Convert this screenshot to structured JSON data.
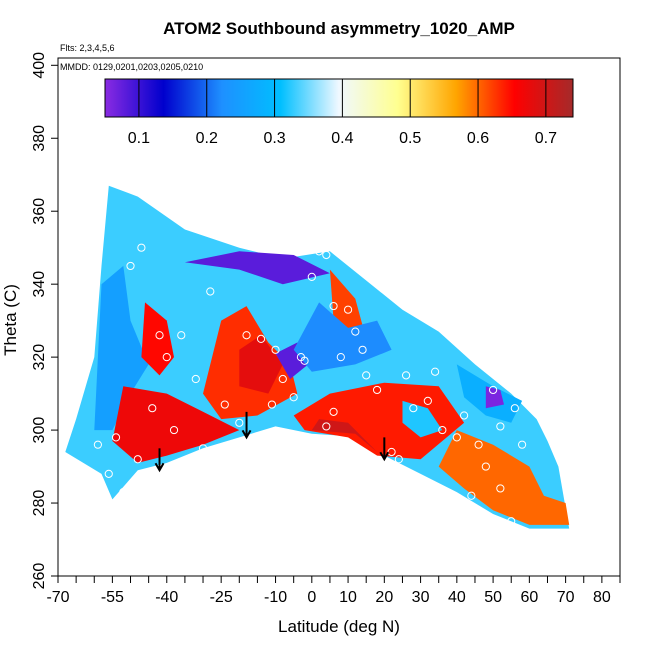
{
  "chart_data": {
    "type": "heatmap",
    "title": "ATOM2 Southbound asymmetry_1020_AMP",
    "annotations": [
      "Flts: 2,3,4,5,6",
      "MMDD: 0129,0201,0203,0205,0210"
    ],
    "xlabel": "Latitude (deg N)",
    "ylabel": "Theta (C)",
    "xlim": [
      -70,
      85
    ],
    "ylim": [
      260,
      402
    ],
    "x_ticks": [
      -70,
      -55,
      -40,
      -25,
      -10,
      0,
      10,
      20,
      30,
      40,
      50,
      60,
      70,
      80
    ],
    "x_tick_labels": [
      "-70",
      "-55",
      "-40",
      "-25",
      "-10",
      "0",
      "10",
      "20",
      "30",
      "40",
      "50",
      "60",
      "70",
      "80"
    ],
    "x_minor_ticks": [
      -65,
      -60,
      -50,
      -45,
      -35,
      -30,
      -20,
      -15,
      -5,
      5,
      15,
      25,
      35,
      45,
      55,
      65,
      75,
      85
    ],
    "y_ticks": [
      260,
      280,
      300,
      320,
      340,
      360,
      380,
      400
    ],
    "y_tick_labels": [
      "260",
      "280",
      "300",
      "320",
      "340",
      "360",
      "380",
      "400"
    ],
    "colorbar": {
      "range": [
        0.05,
        0.74
      ],
      "ticks": [
        0.1,
        0.2,
        0.3,
        0.4,
        0.5,
        0.6,
        0.7
      ],
      "tick_labels": [
        "0.1",
        "0.2",
        "0.3",
        "0.4",
        "0.5",
        "0.6",
        "0.7"
      ],
      "colors": [
        "#8a2be2",
        "#0000cd",
        "#1e90ff",
        "#00bfff",
        "#f0f8ff",
        "#ffff90",
        "#ffa500",
        "#ff0000",
        "#a52a2a"
      ]
    },
    "domain_boundary": [
      [
        -56,
        367
      ],
      [
        -48,
        364
      ],
      [
        -35,
        355
      ],
      [
        -20,
        350
      ],
      [
        -8,
        347
      ],
      [
        5,
        349
      ],
      [
        15,
        341
      ],
      [
        25,
        333
      ],
      [
        35,
        327
      ],
      [
        45,
        318
      ],
      [
        55,
        310
      ],
      [
        62,
        303
      ],
      [
        65,
        297
      ],
      [
        68,
        290
      ],
      [
        71,
        273
      ],
      [
        60,
        273
      ],
      [
        50,
        277
      ],
      [
        40,
        283
      ],
      [
        30,
        288
      ],
      [
        20,
        293
      ],
      [
        15,
        298
      ],
      [
        0,
        299
      ],
      [
        -10,
        301
      ],
      [
        -20,
        298
      ],
      [
        -30,
        295
      ],
      [
        -40,
        291
      ],
      [
        -48,
        289
      ],
      [
        -55,
        281
      ],
      [
        -58,
        288
      ],
      [
        -68,
        294
      ],
      [
        -65,
        303
      ],
      [
        -60,
        320
      ],
      [
        -58,
        345
      ]
    ],
    "field_regions": [
      {
        "value": 0.25,
        "polygon": [
          [
            -60,
            300
          ],
          [
            -58,
            340
          ],
          [
            -52,
            345
          ],
          [
            -50,
            330
          ],
          [
            -45,
            318
          ],
          [
            -50,
            310
          ],
          [
            -55,
            300
          ]
        ]
      },
      {
        "value": 0.65,
        "polygon": [
          [
            -46,
            335
          ],
          [
            -40,
            330
          ],
          [
            -38,
            320
          ],
          [
            -42,
            315
          ],
          [
            -47,
            320
          ]
        ]
      },
      {
        "value": 0.63,
        "polygon": [
          [
            -30,
            310
          ],
          [
            -25,
            330
          ],
          [
            -18,
            334
          ],
          [
            -12,
            324
          ],
          [
            -6,
            318
          ],
          [
            -4,
            310
          ],
          [
            -15,
            304
          ],
          [
            -25,
            303
          ]
        ]
      },
      {
        "value": 0.68,
        "polygon": [
          [
            -20,
            322
          ],
          [
            -14,
            326
          ],
          [
            -8,
            318
          ],
          [
            -12,
            310
          ],
          [
            -20,
            312
          ]
        ]
      },
      {
        "value": 0.08,
        "polygon": [
          [
            -35,
            346
          ],
          [
            -20,
            344
          ],
          [
            -8,
            340
          ],
          [
            5,
            343
          ],
          [
            -5,
            348
          ],
          [
            -20,
            349
          ]
        ]
      },
      {
        "value": 0.08,
        "polygon": [
          [
            -10,
            321
          ],
          [
            -4,
            324
          ],
          [
            -1,
            318
          ],
          [
            -6,
            314
          ]
        ]
      },
      {
        "value": 0.62,
        "polygon": [
          [
            5,
            344
          ],
          [
            12,
            336
          ],
          [
            15,
            325
          ],
          [
            10,
            320
          ],
          [
            6,
            330
          ]
        ]
      },
      {
        "value": 0.22,
        "polygon": [
          [
            -5,
            322
          ],
          [
            2,
            335
          ],
          [
            10,
            328
          ],
          [
            18,
            330
          ],
          [
            22,
            322
          ],
          [
            12,
            318
          ],
          [
            0,
            316
          ]
        ]
      },
      {
        "value": 0.67,
        "polygon": [
          [
            -52,
            312
          ],
          [
            -40,
            310
          ],
          [
            -30,
            305
          ],
          [
            -20,
            300
          ],
          [
            -30,
            296
          ],
          [
            -40,
            293
          ],
          [
            -48,
            291
          ],
          [
            -55,
            297
          ]
        ]
      },
      {
        "value": 0.64,
        "polygon": [
          [
            -5,
            304
          ],
          [
            5,
            310
          ],
          [
            20,
            313
          ],
          [
            35,
            312
          ],
          [
            42,
            302
          ],
          [
            30,
            292
          ],
          [
            18,
            293
          ],
          [
            10,
            298
          ],
          [
            -2,
            300
          ]
        ]
      },
      {
        "value": 0.7,
        "polygon": [
          [
            0,
            300
          ],
          [
            12,
            299
          ],
          [
            18,
            294
          ],
          [
            10,
            302
          ],
          [
            2,
            303
          ]
        ]
      },
      {
        "value": 0.28,
        "polygon": [
          [
            40,
            318
          ],
          [
            50,
            312
          ],
          [
            58,
            308
          ],
          [
            55,
            302
          ],
          [
            48,
            304
          ],
          [
            42,
            309
          ]
        ]
      },
      {
        "value": 0.06,
        "polygon": [
          [
            48,
            312
          ],
          [
            52,
            311
          ],
          [
            53,
            307
          ],
          [
            48,
            306
          ]
        ]
      },
      {
        "value": 0.32,
        "polygon": [
          [
            25,
            308
          ],
          [
            32,
            306
          ],
          [
            36,
            300
          ],
          [
            30,
            298
          ],
          [
            25,
            302
          ]
        ]
      },
      {
        "value": 0.6,
        "polygon": [
          [
            40,
            300
          ],
          [
            50,
            296
          ],
          [
            60,
            290
          ],
          [
            64,
            282
          ],
          [
            70,
            280
          ],
          [
            71,
            274
          ],
          [
            60,
            274
          ],
          [
            50,
            278
          ],
          [
            42,
            284
          ],
          [
            35,
            290
          ]
        ]
      }
    ],
    "observation_markers": [
      [
        -54,
        298
      ],
      [
        -50,
        345
      ],
      [
        -47,
        350
      ],
      [
        -42,
        326
      ],
      [
        -40,
        320
      ],
      [
        -36,
        326
      ],
      [
        -32,
        314
      ],
      [
        -30,
        295
      ],
      [
        -28,
        338
      ],
      [
        -18,
        326
      ],
      [
        -14,
        325
      ],
      [
        -10,
        322
      ],
      [
        -8,
        314
      ],
      [
        -5,
        309
      ],
      [
        -2,
        319
      ],
      [
        0,
        342
      ],
      [
        2,
        349
      ],
      [
        4,
        348
      ],
      [
        6,
        334
      ],
      [
        10,
        333
      ],
      [
        12,
        327
      ],
      [
        14,
        322
      ],
      [
        18,
        311
      ],
      [
        22,
        294
      ],
      [
        24,
        292
      ],
      [
        28,
        306
      ],
      [
        32,
        308
      ],
      [
        36,
        300
      ],
      [
        40,
        298
      ],
      [
        44,
        282
      ],
      [
        48,
        290
      ],
      [
        50,
        311
      ],
      [
        52,
        284
      ],
      [
        55,
        275
      ],
      [
        58,
        296
      ],
      [
        60,
        313
      ],
      [
        -44,
        306
      ],
      [
        -38,
        300
      ],
      [
        -24,
        307
      ],
      [
        -16,
        297
      ],
      [
        4,
        301
      ],
      [
        6,
        305
      ],
      [
        -52,
        283
      ],
      [
        -56,
        288
      ],
      [
        -59,
        296
      ],
      [
        -48,
        292
      ],
      [
        -20,
        302
      ],
      [
        -11,
        307
      ],
      [
        -3,
        320
      ],
      [
        8,
        320
      ],
      [
        15,
        315
      ],
      [
        26,
        315
      ],
      [
        34,
        316
      ],
      [
        42,
        304
      ],
      [
        46,
        296
      ],
      [
        52,
        301
      ],
      [
        56,
        306
      ],
      [
        62,
        308
      ]
    ],
    "arrows": [
      [
        -42,
        295,
        289
      ],
      [
        -18,
        305,
        298
      ],
      [
        20,
        298,
        292
      ]
    ]
  }
}
